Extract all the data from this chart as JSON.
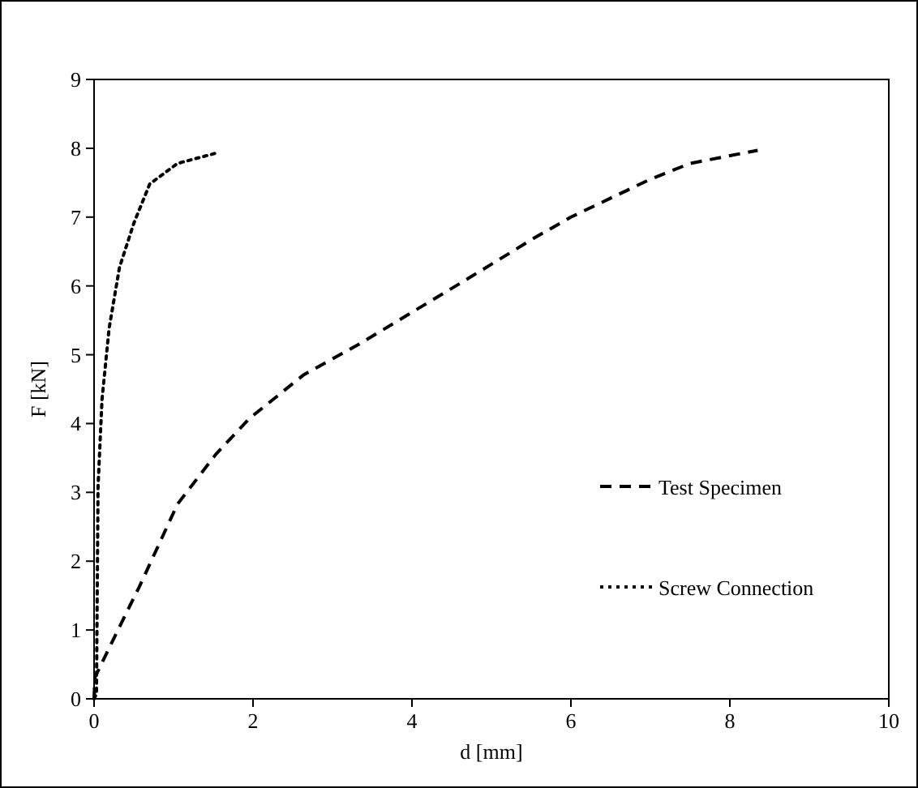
{
  "chart_data": {
    "type": "line",
    "xlabel": "d [mm]",
    "ylabel": "F [kN]",
    "xlim": [
      0,
      10
    ],
    "ylim": [
      0,
      9
    ],
    "xticks": [
      0,
      2,
      4,
      6,
      8,
      10
    ],
    "yticks": [
      0,
      1,
      2,
      3,
      4,
      5,
      6,
      7,
      8,
      9
    ],
    "grid": false,
    "legend": "right",
    "marker": "none",
    "series": [
      {
        "name": "Test Specimen",
        "color": "#000000",
        "line_style": "dashed",
        "x": [
          0,
          0.01,
          0.3,
          0.57,
          1.05,
          1.53,
          1.95,
          2.64,
          3.33,
          4.02,
          4.71,
          5.53,
          6,
          7,
          7.5,
          8.35
        ],
        "values": [
          0,
          0.31,
          1.0,
          1.63,
          2.83,
          3.55,
          4.07,
          4.71,
          5.15,
          5.63,
          6.11,
          6.69,
          7.0,
          7.55,
          7.78,
          7.97
        ]
      },
      {
        "name": "Screw Connection",
        "color": "#000000",
        "line_style": "dotted",
        "x": [
          0,
          0.03,
          0.05,
          0.1,
          0.19,
          0.32,
          0.5,
          0.7,
          1.05,
          1.57
        ],
        "values": [
          0,
          0.07,
          3.08,
          4.35,
          5.39,
          6.27,
          6.91,
          7.48,
          7.78,
          7.94
        ]
      }
    ]
  }
}
